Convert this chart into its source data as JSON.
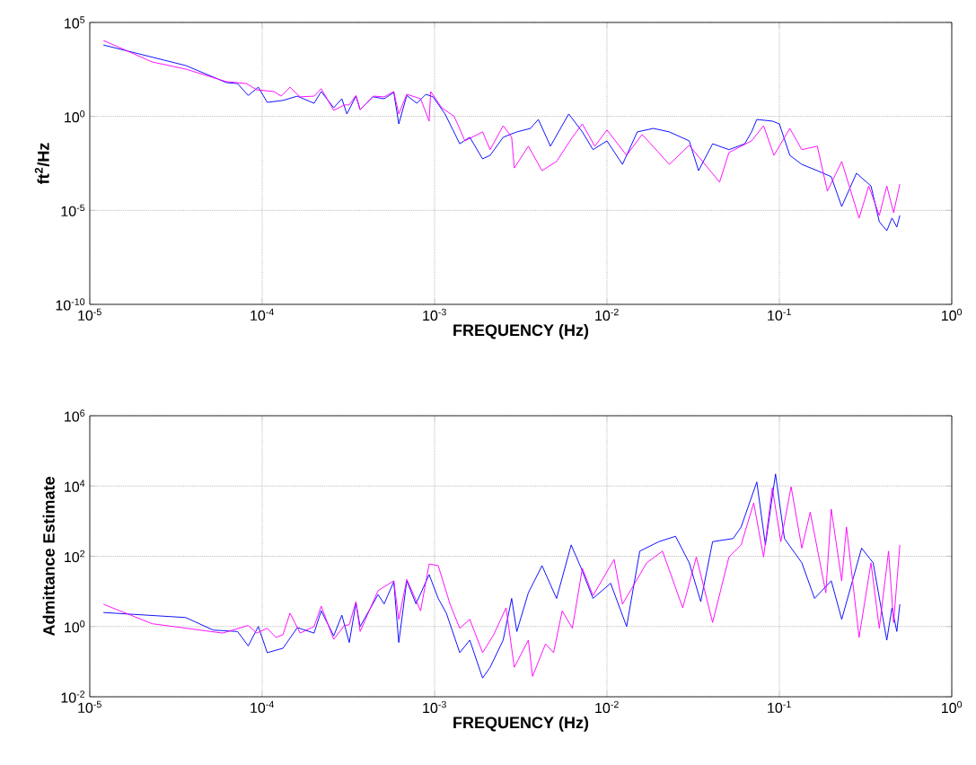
{
  "chart_data": [
    {
      "type": "line",
      "log": "xy",
      "grid": true,
      "xlabel": "FREQUENCY (Hz)",
      "ylabel": "ft$^{2}$/Hz",
      "xlim": [
        1e-05,
        1
      ],
      "ylim": [
        1e-10,
        100000.0
      ],
      "xticks": [
        {
          "value": 1e-05,
          "label": "10$^{-5}$"
        },
        {
          "value": 0.0001,
          "label": "10$^{-4}$"
        },
        {
          "value": 0.001,
          "label": "10$^{-3}$"
        },
        {
          "value": 0.01,
          "label": "10$^{-2}$"
        },
        {
          "value": 0.1,
          "label": "10$^{-1}$"
        },
        {
          "value": 1,
          "label": "10$^{0}$"
        }
      ],
      "yticks": [
        {
          "value": 1e-10,
          "label": "10$^{-10}$"
        },
        {
          "value": 1e-05,
          "label": "10$^{-5}$"
        },
        {
          "value": 1,
          "label": "10$^{0}$"
        },
        {
          "value": 100000.0,
          "label": "10$^{5}$"
        }
      ],
      "series": [
        {
          "color": "#0000ff",
          "x": [
            1.2e-05,
            3.6e-05,
            6.2e-05,
            7.2e-05,
            8.3e-05,
            9.5e-05,
            0.000107,
            0.000132,
            0.00016,
            0.0002,
            0.00022,
            0.00026,
            0.00029,
            0.00031,
            0.00035,
            0.00037,
            0.00044,
            0.00051,
            0.00058,
            0.00062,
            0.00069,
            0.00079,
            0.00089,
            0.00098,
            0.00115,
            0.0014,
            0.0016,
            0.0019,
            0.0021,
            0.0025,
            0.003,
            0.0036,
            0.004,
            0.0047,
            0.006,
            0.0072,
            0.0083,
            0.01,
            0.0123,
            0.015,
            0.0186,
            0.023,
            0.03,
            0.034,
            0.041,
            0.051,
            0.063,
            0.069,
            0.074,
            0.091,
            0.1,
            0.115,
            0.135,
            0.166,
            0.2,
            0.23,
            0.28,
            0.34,
            0.38,
            0.42,
            0.45,
            0.48,
            0.5
          ],
          "values": [
            6300,
            510,
            63,
            56,
            13,
            36,
            5.6,
            7.1,
            12,
            5.0,
            21,
            2.9,
            8.7,
            1.35,
            12,
            2.3,
            11,
            8.7,
            19,
            0.4,
            13,
            5.0,
            15,
            11,
            1.35,
            0.035,
            0.078,
            0.0055,
            0.0085,
            0.078,
            0.15,
            0.23,
            0.69,
            0.026,
            1.35,
            0.15,
            0.017,
            0.05,
            0.0028,
            0.15,
            0.23,
            0.15,
            0.05,
            0.0013,
            0.035,
            0.017,
            0.035,
            0.15,
            0.69,
            0.56,
            0.4,
            0.0085,
            0.0028,
            0.0013,
            0.00062,
            1.6e-05,
            0.00095,
            0.0002,
            2.5e-06,
            8.3e-07,
            3.9e-06,
            1.3e-06,
            5.4e-06
          ]
        },
        {
          "color": "#ff00ff",
          "x": [
            1.2e-05,
            2.3e-05,
            3.6e-05,
            6.2e-05,
            8.1e-05,
            9.3e-05,
            0.000117,
            0.000129,
            0.000145,
            0.000166,
            0.0002,
            0.00022,
            0.00026,
            0.0003,
            0.00032,
            0.00035,
            0.00037,
            0.00044,
            0.00051,
            0.00058,
            0.00062,
            0.00069,
            0.00083,
            0.00093,
            0.00095,
            0.0011,
            0.0013,
            0.0015,
            0.0019,
            0.0021,
            0.0025,
            0.0028,
            0.0029,
            0.0035,
            0.0042,
            0.0051,
            0.0063,
            0.0072,
            0.0085,
            0.01,
            0.013,
            0.016,
            0.023,
            0.03,
            0.045,
            0.051,
            0.069,
            0.081,
            0.093,
            0.115,
            0.135,
            0.166,
            0.19,
            0.23,
            0.29,
            0.33,
            0.38,
            0.42,
            0.46,
            0.5
          ],
          "values": [
            11000,
            790,
            330,
            71,
            56,
            26,
            21,
            12,
            36,
            11,
            12,
            30,
            2.1,
            4.1,
            4.1,
            13,
            2.3,
            12,
            11,
            21,
            1.35,
            15,
            8.7,
            0.56,
            21,
            2.9,
            1.0,
            0.05,
            0.15,
            0.017,
            0.32,
            0.078,
            0.0018,
            0.026,
            0.0013,
            0.004,
            0.078,
            0.4,
            0.026,
            0.19,
            0.0085,
            0.11,
            0.0028,
            0.029,
            0.00032,
            0.012,
            0.05,
            0.32,
            0.0085,
            0.23,
            0.017,
            0.026,
            0.000105,
            0.004,
            3.9e-06,
            0.0002,
            5.4e-06,
            0.0002,
            7.6e-06,
            0.00025
          ]
        }
      ]
    },
    {
      "type": "line",
      "log": "xy",
      "grid": true,
      "xlabel": "FREQUENCY (Hz)",
      "ylabel": "Admittance Estimate",
      "xlim": [
        1e-05,
        1
      ],
      "ylim": [
        0.01,
        1000000.0
      ],
      "xticks": [
        {
          "value": 1e-05,
          "label": "10$^{-5}$"
        },
        {
          "value": 0.0001,
          "label": "10$^{-4}$"
        },
        {
          "value": 0.001,
          "label": "10$^{-3}$"
        },
        {
          "value": 0.01,
          "label": "10$^{-2}$"
        },
        {
          "value": 0.1,
          "label": "10$^{-1}$"
        },
        {
          "value": 1,
          "label": "10$^{0}$"
        }
      ],
      "yticks": [
        {
          "value": 0.01,
          "label": "10$^{-2}$"
        },
        {
          "value": 1,
          "label": "10$^{0}$"
        },
        {
          "value": 100,
          "label": "10$^{2}$"
        },
        {
          "value": 10000.0,
          "label": "10$^{4}$"
        },
        {
          "value": 1000000.0,
          "label": "10$^{6}$"
        }
      ],
      "series": [
        {
          "color": "#0000ff",
          "x": [
            1.2e-05,
            3.6e-05,
            5.2e-05,
            7.2e-05,
            8.3e-05,
            9.5e-05,
            0.000107,
            0.000132,
            0.00016,
            0.0002,
            0.00022,
            0.00026,
            0.00029,
            0.00032,
            0.00035,
            0.00037,
            0.00047,
            0.00051,
            0.00058,
            0.00062,
            0.00069,
            0.00078,
            0.00093,
            0.00105,
            0.00117,
            0.0014,
            0.0016,
            0.0019,
            0.0021,
            0.0025,
            0.0028,
            0.003,
            0.0035,
            0.0042,
            0.0051,
            0.0062,
            0.0071,
            0.0083,
            0.0105,
            0.013,
            0.0155,
            0.02,
            0.025,
            0.03,
            0.035,
            0.041,
            0.054,
            0.06,
            0.074,
            0.083,
            0.095,
            0.107,
            0.135,
            0.16,
            0.2,
            0.23,
            0.3,
            0.35,
            0.42,
            0.45,
            0.48,
            0.5
          ],
          "values": [
            2.5,
            1.8,
            0.79,
            0.72,
            0.28,
            1.0,
            0.18,
            0.24,
            0.93,
            0.65,
            2.8,
            0.54,
            2.1,
            0.35,
            4.6,
            1.0,
            8.1,
            4.4,
            19,
            0.35,
            20,
            4.4,
            30,
            6.3,
            2.4,
            0.18,
            0.41,
            0.034,
            0.069,
            0.41,
            6.3,
            0.72,
            9.1,
            54,
            6.3,
            210,
            45,
            6.3,
            17,
            1.0,
            140,
            260,
            370,
            65,
            5.1,
            260,
            320,
            680,
            13000,
            210,
            22000,
            320,
            65,
            6.3,
            20,
            1.6,
            170,
            65,
            0.41,
            3.4,
            0.72,
            4.3
          ]
        },
        {
          "color": "#ff00ff",
          "x": [
            1.2e-05,
            2.3e-05,
            5.9e-05,
            8.3e-05,
            9.3e-05,
            0.000107,
            0.00012,
            0.000132,
            0.000145,
            0.000166,
            0.0002,
            0.00022,
            0.00026,
            0.0003,
            0.00032,
            0.00035,
            0.00037,
            0.00047,
            0.00058,
            0.00062,
            0.00069,
            0.00083,
            0.00093,
            0.00105,
            0.00123,
            0.0014,
            0.0016,
            0.0019,
            0.0022,
            0.0026,
            0.0029,
            0.0035,
            0.0037,
            0.0044,
            0.0049,
            0.0055,
            0.0063,
            0.0072,
            0.0083,
            0.011,
            0.0123,
            0.017,
            0.021,
            0.0275,
            0.033,
            0.041,
            0.051,
            0.06,
            0.071,
            0.081,
            0.091,
            0.102,
            0.117,
            0.135,
            0.151,
            0.186,
            0.2,
            0.23,
            0.245,
            0.29,
            0.34,
            0.38,
            0.43,
            0.46,
            0.5
          ],
          "values": [
            4.3,
            1.2,
            0.65,
            1.07,
            0.65,
            0.89,
            0.49,
            0.58,
            2.4,
            0.65,
            1.0,
            3.8,
            0.43,
            1.07,
            1.12,
            5.1,
            0.72,
            10.5,
            20,
            1.6,
            22,
            2.8,
            60,
            54,
            4.3,
            0.89,
            1.6,
            0.18,
            0.58,
            3.4,
            0.069,
            0.41,
            0.038,
            0.32,
            0.18,
            2.8,
            0.89,
            45,
            7.6,
            81,
            4.3,
            65,
            140,
            3.4,
            95,
            1.3,
            95,
            210,
            3300,
            95,
            8900,
            260,
            9500,
            170,
            1800,
            9.1,
            2200,
            20,
            680,
            0.49,
            65,
            0.89,
            140,
            1.3,
            210
          ]
        }
      ]
    }
  ]
}
